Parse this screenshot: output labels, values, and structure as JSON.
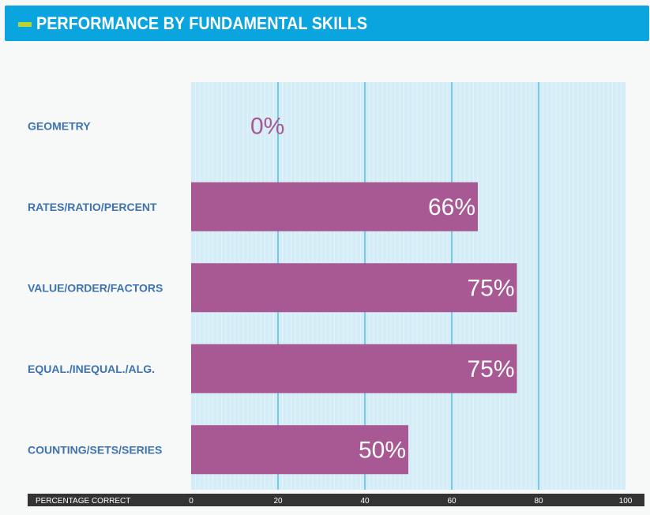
{
  "header": {
    "title": "PERFORMANCE BY FUNDAMENTAL SKILLS"
  },
  "colors": {
    "header_bg": "#0aa5df",
    "header_accent": "#b9d433",
    "plot_bg": "#d5edf7",
    "bar": "#a85893",
    "category_text": "#3d73b0",
    "zero_value_text": "#a85893",
    "bar_value_text": "#ffffff",
    "axis_bar": "#333333"
  },
  "chart_data": {
    "type": "bar",
    "orientation": "horizontal",
    "categories": [
      "GEOMETRY",
      "RATES/RATIO/PERCENT",
      "VALUE/ORDER/FACTORS",
      "EQUAL./INEQUAL./ALG.",
      "COUNTING/SETS/SERIES"
    ],
    "values": [
      0,
      66,
      75,
      75,
      50
    ],
    "value_labels": [
      "0%",
      "66%",
      "75%",
      "75%",
      "50%"
    ],
    "xlabel": "PERCENTAGE CORRECT",
    "xlim": [
      0,
      100
    ],
    "xticks": [
      "0",
      "20",
      "40",
      "60",
      "80",
      "100"
    ],
    "grid": true
  }
}
